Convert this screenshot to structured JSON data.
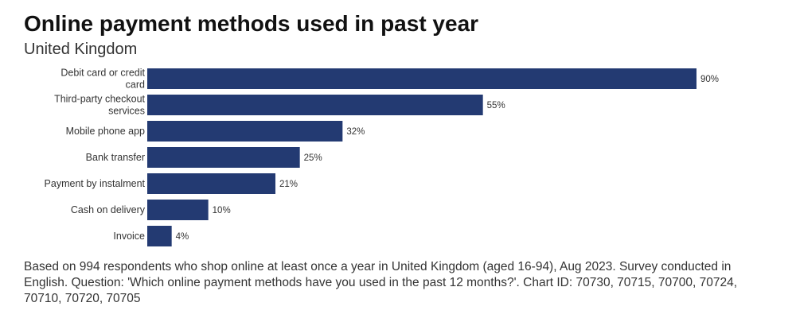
{
  "chart_data": {
    "type": "bar",
    "orientation": "horizontal",
    "title": "Online payment methods used in past year",
    "subtitle": "United Kingdom",
    "categories": [
      "Debit card or credit card",
      "Third-party checkout services",
      "Mobile phone app",
      "Bank transfer",
      "Payment by instalment",
      "Cash on delivery",
      "Invoice"
    ],
    "category_lines": [
      [
        "Debit card or credit",
        "card"
      ],
      [
        "Third-party checkout",
        "services"
      ],
      [
        "Mobile phone app"
      ],
      [
        "Bank transfer"
      ],
      [
        "Payment by instalment"
      ],
      [
        "Cash on delivery"
      ],
      [
        "Invoice"
      ]
    ],
    "values": [
      90,
      55,
      32,
      25,
      21,
      10,
      4
    ],
    "value_labels": [
      "90%",
      "55%",
      "32%",
      "25%",
      "21%",
      "10%",
      "4%"
    ],
    "unit": "%",
    "xlim": [
      0,
      90
    ],
    "grid": false,
    "legend": "none",
    "bar_color": "#233a72"
  },
  "footnote": "Based on 994 respondents who shop online at least once a year in United Kingdom (aged 16-94), Aug 2023. Survey conducted in English. Question: 'Which online payment methods have you used in the past 12 months?'. Chart ID: 70730, 70715, 70700, 70724, 70710, 70720, 70705"
}
